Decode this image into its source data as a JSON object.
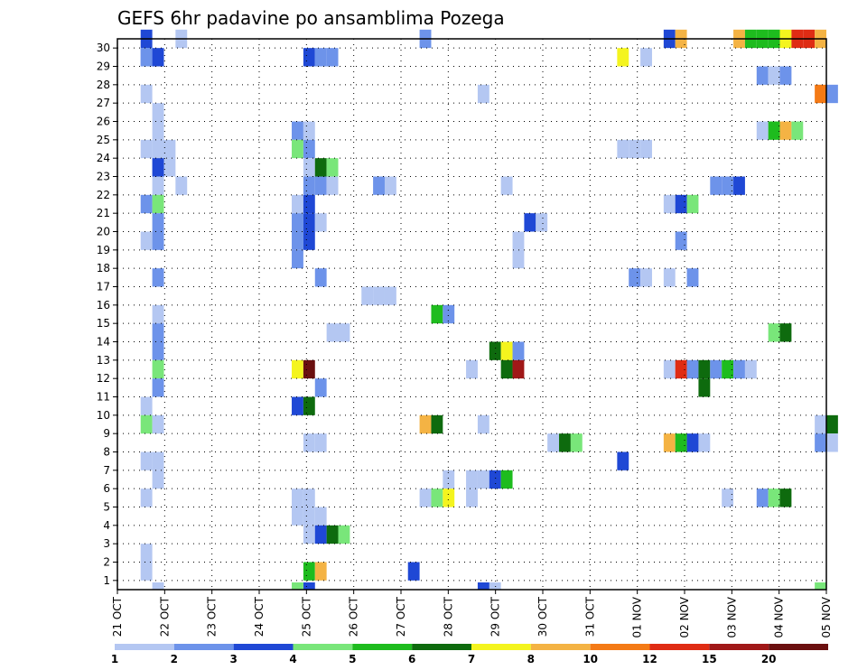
{
  "chart_data": {
    "type": "heatmap",
    "title": "GEFS 6hr padavine po ansamblima Pozega",
    "x_tick_labels": [
      "21 OCT",
      "22 OCT",
      "23 OCT",
      "24 OCT",
      "25 OCT",
      "26 OCT",
      "27 OCT",
      "28 OCT",
      "29 OCT",
      "30 OCT",
      "31 OCT",
      "01 NOV",
      "02 NOV",
      "03 NOV",
      "04 NOV",
      "05 NOV"
    ],
    "y_tick_labels": [
      "1",
      "2",
      "3",
      "4",
      "5",
      "6",
      "7",
      "8",
      "9",
      "10",
      "11",
      "12",
      "13",
      "14",
      "15",
      "16",
      "17",
      "18",
      "19",
      "20",
      "21",
      "22",
      "23",
      "24",
      "25",
      "26",
      "27",
      "28",
      "29",
      "30"
    ],
    "grid": true,
    "legend_placement": "bottom",
    "legend": {
      "labels": [
        "1",
        "2",
        "3",
        "4",
        "5",
        "6",
        "7",
        "8",
        "10",
        "12",
        "15",
        "20"
      ],
      "colors": [
        "#b4c7f2",
        "#6d93ea",
        "#1f48d5",
        "#79e67a",
        "#1ebc1e",
        "#0e6b0e",
        "#f4f41e",
        "#f4b344",
        "#f47a16",
        "#df2c14",
        "#a01818",
        "#6b1010"
      ]
    },
    "cells": [
      [
        2,
        30,
        3
      ],
      [
        2,
        29,
        2
      ],
      [
        2,
        29,
        2
      ],
      [
        3,
        29,
        3
      ],
      [
        2,
        27,
        1
      ],
      [
        3,
        26,
        1
      ],
      [
        3,
        25,
        1
      ],
      [
        2,
        24,
        1
      ],
      [
        3,
        24,
        1
      ],
      [
        4,
        24,
        1
      ],
      [
        3,
        23,
        1
      ],
      [
        3,
        23,
        3
      ],
      [
        4,
        23,
        1
      ],
      [
        3,
        22,
        1
      ],
      [
        5,
        22,
        1
      ],
      [
        2,
        21,
        2
      ],
      [
        3,
        21,
        4
      ],
      [
        3,
        20,
        2
      ],
      [
        2,
        19,
        1
      ],
      [
        3,
        19,
        2
      ],
      [
        3,
        17,
        2
      ],
      [
        3,
        15,
        1
      ],
      [
        3,
        14,
        2
      ],
      [
        3,
        13,
        2
      ],
      [
        3,
        12,
        4
      ],
      [
        3,
        11,
        2
      ],
      [
        2,
        10,
        1
      ],
      [
        2,
        9,
        4
      ],
      [
        3,
        9,
        1
      ],
      [
        2,
        7,
        1
      ],
      [
        3,
        7,
        1
      ],
      [
        3,
        6,
        1
      ],
      [
        2,
        5,
        1
      ],
      [
        2,
        2,
        1
      ],
      [
        2,
        1,
        1
      ],
      [
        3,
        0,
        1
      ],
      [
        5,
        30,
        1
      ],
      [
        16,
        29,
        3
      ],
      [
        17,
        29,
        2
      ],
      [
        18,
        29,
        2
      ],
      [
        16,
        22,
        2
      ],
      [
        17,
        22,
        2
      ],
      [
        18,
        22,
        1
      ],
      [
        15,
        25,
        2
      ],
      [
        16,
        25,
        1
      ],
      [
        15,
        24,
        4
      ],
      [
        16,
        24,
        2
      ],
      [
        16,
        23,
        1
      ],
      [
        17,
        23,
        6
      ],
      [
        18,
        23,
        4
      ],
      [
        15,
        21,
        1
      ],
      [
        16,
        21,
        3
      ],
      [
        15,
        20,
        2
      ],
      [
        16,
        20,
        3
      ],
      [
        17,
        20,
        1
      ],
      [
        15,
        19,
        2
      ],
      [
        16,
        19,
        3
      ],
      [
        15,
        18,
        2
      ],
      [
        17,
        17,
        2
      ],
      [
        18,
        14,
        1
      ],
      [
        19,
        14,
        1
      ],
      [
        15,
        12,
        7
      ],
      [
        16,
        12,
        12
      ],
      [
        17,
        11,
        2
      ],
      [
        15,
        10,
        3
      ],
      [
        16,
        10,
        6
      ],
      [
        16,
        8,
        1
      ],
      [
        17,
        8,
        1
      ],
      [
        15,
        5,
        1
      ],
      [
        16,
        5,
        1
      ],
      [
        15,
        4,
        1
      ],
      [
        16,
        4,
        1
      ],
      [
        17,
        4,
        1
      ],
      [
        16,
        3,
        1
      ],
      [
        17,
        3,
        3
      ],
      [
        18,
        3,
        6
      ],
      [
        19,
        3,
        4
      ],
      [
        16,
        1,
        5
      ],
      [
        17,
        1,
        8
      ],
      [
        16,
        0,
        3
      ],
      [
        15,
        0,
        4
      ],
      [
        22,
        22,
        2
      ],
      [
        23,
        22,
        1
      ],
      [
        21,
        16,
        1
      ],
      [
        22,
        16,
        1
      ],
      [
        23,
        16,
        1
      ],
      [
        26,
        30,
        2
      ],
      [
        27,
        15,
        5
      ],
      [
        28,
        15,
        2
      ],
      [
        26,
        9,
        8
      ],
      [
        27,
        9,
        6
      ],
      [
        28,
        6,
        1
      ],
      [
        26,
        5,
        1
      ],
      [
        27,
        5,
        4
      ],
      [
        28,
        5,
        7
      ],
      [
        25,
        1,
        3
      ],
      [
        31,
        27,
        1
      ],
      [
        33,
        22,
        1
      ],
      [
        32,
        13,
        6
      ],
      [
        33,
        13,
        7
      ],
      [
        34,
        13,
        2
      ],
      [
        33,
        12,
        6
      ],
      [
        34,
        12,
        11
      ],
      [
        30,
        12,
        1
      ],
      [
        31,
        9,
        1
      ],
      [
        31,
        6,
        1
      ],
      [
        30,
        6,
        1
      ],
      [
        32,
        6,
        3
      ],
      [
        33,
        6,
        5
      ],
      [
        30,
        5,
        1
      ],
      [
        32,
        0,
        1
      ],
      [
        31,
        0,
        3
      ],
      [
        34,
        19,
        1
      ],
      [
        35,
        20,
        3
      ],
      [
        36,
        20,
        1
      ],
      [
        34,
        18,
        1
      ],
      [
        37,
        8,
        1
      ],
      [
        38,
        8,
        6
      ],
      [
        39,
        8,
        4
      ],
      [
        43,
        29,
        7
      ],
      [
        45,
        29,
        1
      ],
      [
        43,
        24,
        1
      ],
      [
        44,
        24,
        1
      ],
      [
        45,
        24,
        1
      ],
      [
        44,
        17,
        2
      ],
      [
        45,
        17,
        1
      ],
      [
        47,
        17,
        1
      ],
      [
        49,
        17,
        2
      ],
      [
        43,
        7,
        3
      ],
      [
        47,
        30,
        3
      ],
      [
        48,
        30,
        8
      ],
      [
        47,
        21,
        1
      ],
      [
        48,
        21,
        3
      ],
      [
        49,
        21,
        4
      ],
      [
        48,
        19,
        2
      ],
      [
        47,
        12,
        1
      ],
      [
        48,
        12,
        10
      ],
      [
        49,
        12,
        2
      ],
      [
        50,
        12,
        6
      ],
      [
        51,
        12,
        2
      ],
      [
        52,
        12,
        5
      ],
      [
        53,
        12,
        2
      ],
      [
        54,
        12,
        1
      ],
      [
        50,
        11,
        6
      ],
      [
        47,
        8,
        8
      ],
      [
        48,
        8,
        5
      ],
      [
        49,
        8,
        3
      ],
      [
        50,
        8,
        1
      ],
      [
        51,
        22,
        2
      ],
      [
        52,
        22,
        2
      ],
      [
        53,
        22,
        3
      ],
      [
        52,
        5,
        1
      ],
      [
        53,
        30,
        8
      ],
      [
        54,
        30,
        5
      ],
      [
        55,
        30,
        5
      ],
      [
        56,
        30,
        5
      ],
      [
        57,
        30,
        7
      ],
      [
        58,
        30,
        10
      ],
      [
        59,
        30,
        10
      ],
      [
        60,
        30,
        8
      ],
      [
        55,
        28,
        2
      ],
      [
        56,
        28,
        1
      ],
      [
        57,
        28,
        2
      ],
      [
        60,
        27,
        9
      ],
      [
        61,
        27,
        2
      ],
      [
        55,
        25,
        1
      ],
      [
        56,
        25,
        5
      ],
      [
        57,
        25,
        8
      ],
      [
        58,
        25,
        4
      ],
      [
        56,
        14,
        4
      ],
      [
        57,
        14,
        6
      ],
      [
        55,
        5,
        2
      ],
      [
        56,
        5,
        4
      ],
      [
        57,
        5,
        6
      ],
      [
        60,
        9,
        1
      ],
      [
        61,
        9,
        6
      ],
      [
        60,
        8,
        2
      ],
      [
        61,
        8,
        1
      ],
      [
        60,
        0,
        4
      ]
    ]
  }
}
